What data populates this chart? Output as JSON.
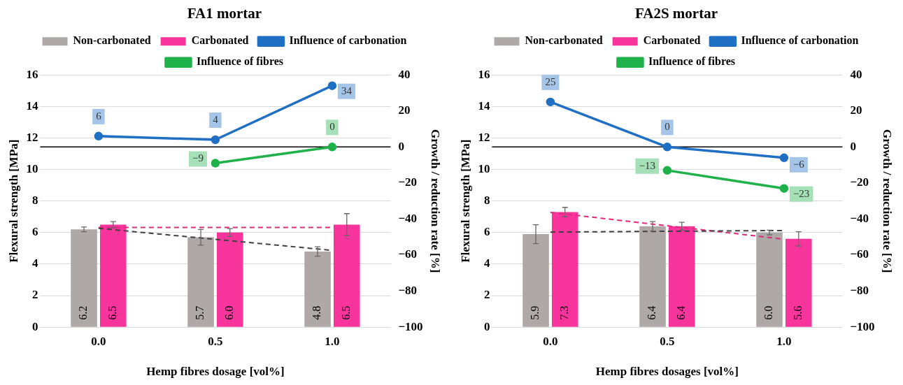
{
  "chart_data": [
    {
      "type": "bar",
      "title": "FA1 mortar",
      "xlabel": "Hemp fibres dosage [vol%]",
      "ylabel": "Flexural strength [MPa]",
      "y2label": "Growth / reduction rate [%]",
      "categories": [
        "0.0",
        "0.5",
        "1.0"
      ],
      "ylim": [
        0,
        16
      ],
      "yticks": [
        0,
        2,
        4,
        6,
        8,
        10,
        12,
        14,
        16
      ],
      "y2lim": [
        -100,
        40
      ],
      "y2ticks": [
        {
          "value": -100,
          "label": "−100"
        },
        {
          "value": -80,
          "label": "−80"
        },
        {
          "value": -60,
          "label": "−60"
        },
        {
          "value": -40,
          "label": "−40"
        },
        {
          "value": -20,
          "label": "−20"
        },
        0,
        20,
        40
      ],
      "grid": "y",
      "legend": "top",
      "ref_lines": [
        {
          "axis": "y2",
          "value": 0,
          "color": "#000000"
        }
      ],
      "series": [
        {
          "name": "Non-carbonated",
          "color": "#aea8a6",
          "values": [
            6.2,
            5.7,
            4.8
          ],
          "errors": [
            0.15,
            0.5,
            0.3
          ],
          "value_labels": [
            "6.2",
            "5.7",
            "4.8"
          ]
        },
        {
          "name": "Carbonated",
          "color": "#f7359c",
          "values": [
            6.5,
            6.0,
            6.5
          ],
          "errors": [
            0.2,
            0.25,
            0.7
          ],
          "value_labels": [
            "6.5",
            "6.0",
            "6.5"
          ]
        },
        {
          "type": "line",
          "name": "Influence of carbonation",
          "color": "#1f6fc5",
          "axis": "y2",
          "marker": "circle",
          "values": [
            6,
            4,
            34
          ],
          "value_labels": [
            "6",
            "4",
            "34"
          ]
        },
        {
          "type": "line",
          "name": "Influence of fibres",
          "color": "#1fb24a",
          "axis": "y2",
          "marker": "circle",
          "values": [
            null,
            -9,
            0
          ],
          "value_labels": [
            null,
            "−9",
            "0"
          ]
        },
        {
          "type": "line",
          "color": "#404040",
          "line_style": "dashed",
          "marker": "none",
          "x": [
            "0.0",
            "1.0"
          ],
          "values": [
            6.27,
            4.87
          ]
        },
        {
          "type": "line",
          "color": "#e02a7d",
          "line_style": "dashed",
          "marker": "none",
          "x": [
            "0.0",
            "1.0"
          ],
          "values": [
            6.33,
            6.33
          ]
        }
      ]
    },
    {
      "type": "bar",
      "title": "FA2S mortar",
      "xlabel": "Hemp fibres dosages [vol%]",
      "ylabel": "Flexural strength [MPa]",
      "y2label": "Growth / reduction rate [%]",
      "categories": [
        "0.0",
        "0.5",
        "1.0"
      ],
      "ylim": [
        0,
        16
      ],
      "yticks": [
        0,
        2,
        4,
        6,
        8,
        10,
        12,
        14,
        16
      ],
      "y2lim": [
        -100,
        40
      ],
      "y2ticks": [
        {
          "value": -100,
          "label": "−100"
        },
        {
          "value": -80,
          "label": "−80"
        },
        {
          "value": -60,
          "label": "−60"
        },
        {
          "value": -40,
          "label": "−40"
        },
        {
          "value": -20,
          "label": "−20"
        },
        0,
        20,
        40
      ],
      "grid": "y",
      "legend": "top",
      "ref_lines": [
        {
          "axis": "y2",
          "value": 0,
          "color": "#000000"
        }
      ],
      "series": [
        {
          "name": "Non-carbonated",
          "color": "#aea8a6",
          "values": [
            5.9,
            6.4,
            6.0
          ],
          "errors": [
            0.6,
            0.3,
            0.15
          ],
          "value_labels": [
            "5.9",
            "6.4",
            "6.0"
          ]
        },
        {
          "name": "Carbonated",
          "color": "#f7359c",
          "values": [
            7.3,
            6.4,
            5.6
          ],
          "errors": [
            0.3,
            0.25,
            0.45
          ],
          "value_labels": [
            "7.3",
            "6.4",
            "5.6"
          ]
        },
        {
          "type": "line",
          "name": "Influence of carbonation",
          "color": "#1f6fc5",
          "axis": "y2",
          "marker": "circle",
          "values": [
            25,
            0,
            -6
          ],
          "value_labels": [
            "25",
            "0",
            "−6"
          ]
        },
        {
          "type": "line",
          "name": "Influence of fibres",
          "color": "#1fb24a",
          "axis": "y2",
          "marker": "circle",
          "values": [
            null,
            -13,
            -23
          ],
          "value_labels": [
            null,
            "−13",
            "−23"
          ]
        },
        {
          "type": "line",
          "color": "#404040",
          "line_style": "dashed",
          "marker": "none",
          "x": [
            "0.0",
            "1.0"
          ],
          "values": [
            6.03,
            6.13
          ]
        },
        {
          "type": "line",
          "color": "#e02a7d",
          "line_style": "dashed",
          "marker": "none",
          "x": [
            "0.0",
            "1.0"
          ],
          "values": [
            7.28,
            5.58
          ]
        }
      ]
    }
  ]
}
